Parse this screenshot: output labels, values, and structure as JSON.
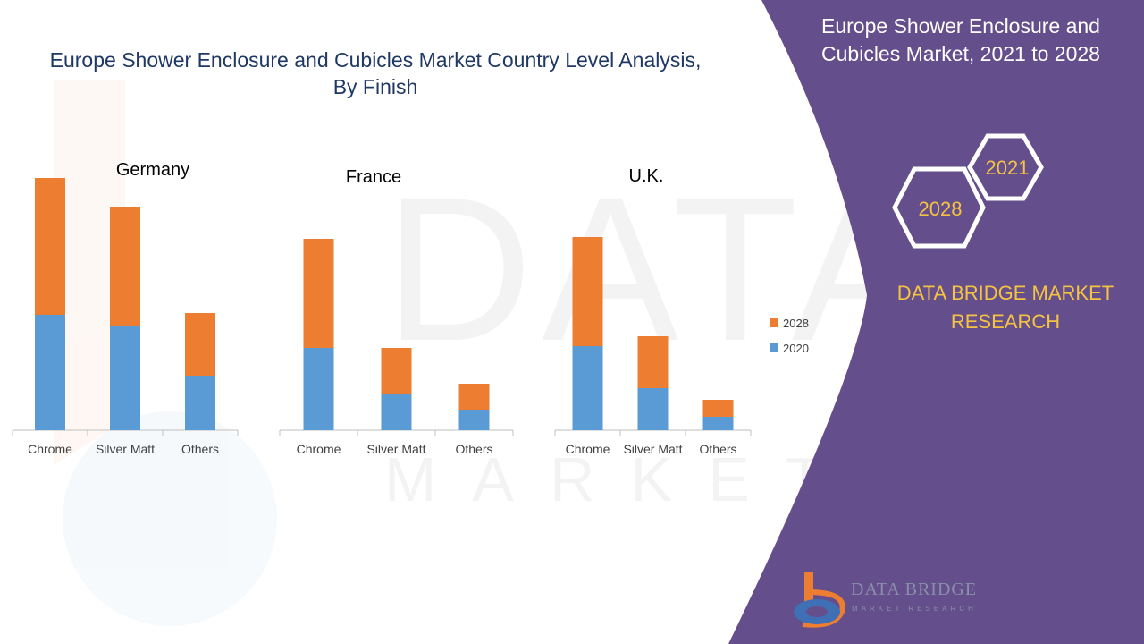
{
  "title_line1": "Europe Shower Enclosure and Cubicles Market Country Level Analysis,",
  "title_line2": "By Finish",
  "panel": {
    "title_line1": "Europe Shower Enclosure and",
    "title_line2": "Cubicles Market, 2021 to 2028",
    "hex_year_a": "2021",
    "hex_year_b": "2028",
    "brand_line1": "DATA BRIDGE MARKET",
    "brand_line2": "RESEARCH",
    "logo_text": "DATA BRIDGE",
    "logo_subtext": "MARKET RESEARCH",
    "colors": {
      "background": "#654e8c",
      "accent": "#f5c342"
    }
  },
  "chart_data": [
    {
      "type": "bar",
      "stacked": true,
      "title": "Germany",
      "categories": [
        "Chrome",
        "Silver Matt",
        "Others"
      ],
      "series": [
        {
          "name": "2020",
          "color": "#5b9bd5",
          "values": [
            129,
            116,
            61
          ]
        },
        {
          "name": "2028",
          "color": "#ed7d31",
          "values": [
            153,
            134,
            70
          ]
        }
      ]
    },
    {
      "type": "bar",
      "stacked": true,
      "title": "France",
      "categories": [
        "Chrome",
        "Silver Matt",
        "Others"
      ],
      "series": [
        {
          "name": "2020",
          "color": "#5b9bd5",
          "values": [
            92,
            40,
            23
          ]
        },
        {
          "name": "2028",
          "color": "#ed7d31",
          "values": [
            122,
            52,
            29
          ]
        }
      ]
    },
    {
      "type": "bar",
      "stacked": true,
      "title": "U.K.",
      "categories": [
        "Chrome",
        "Silver Matt",
        "Others"
      ],
      "series": [
        {
          "name": "2020",
          "color": "#5b9bd5",
          "values": [
            94,
            47,
            15
          ]
        },
        {
          "name": "2028",
          "color": "#ed7d31",
          "values": [
            122,
            58,
            19
          ]
        }
      ]
    }
  ],
  "legend": {
    "placement": "right",
    "items": [
      "2028",
      "2020"
    ]
  }
}
